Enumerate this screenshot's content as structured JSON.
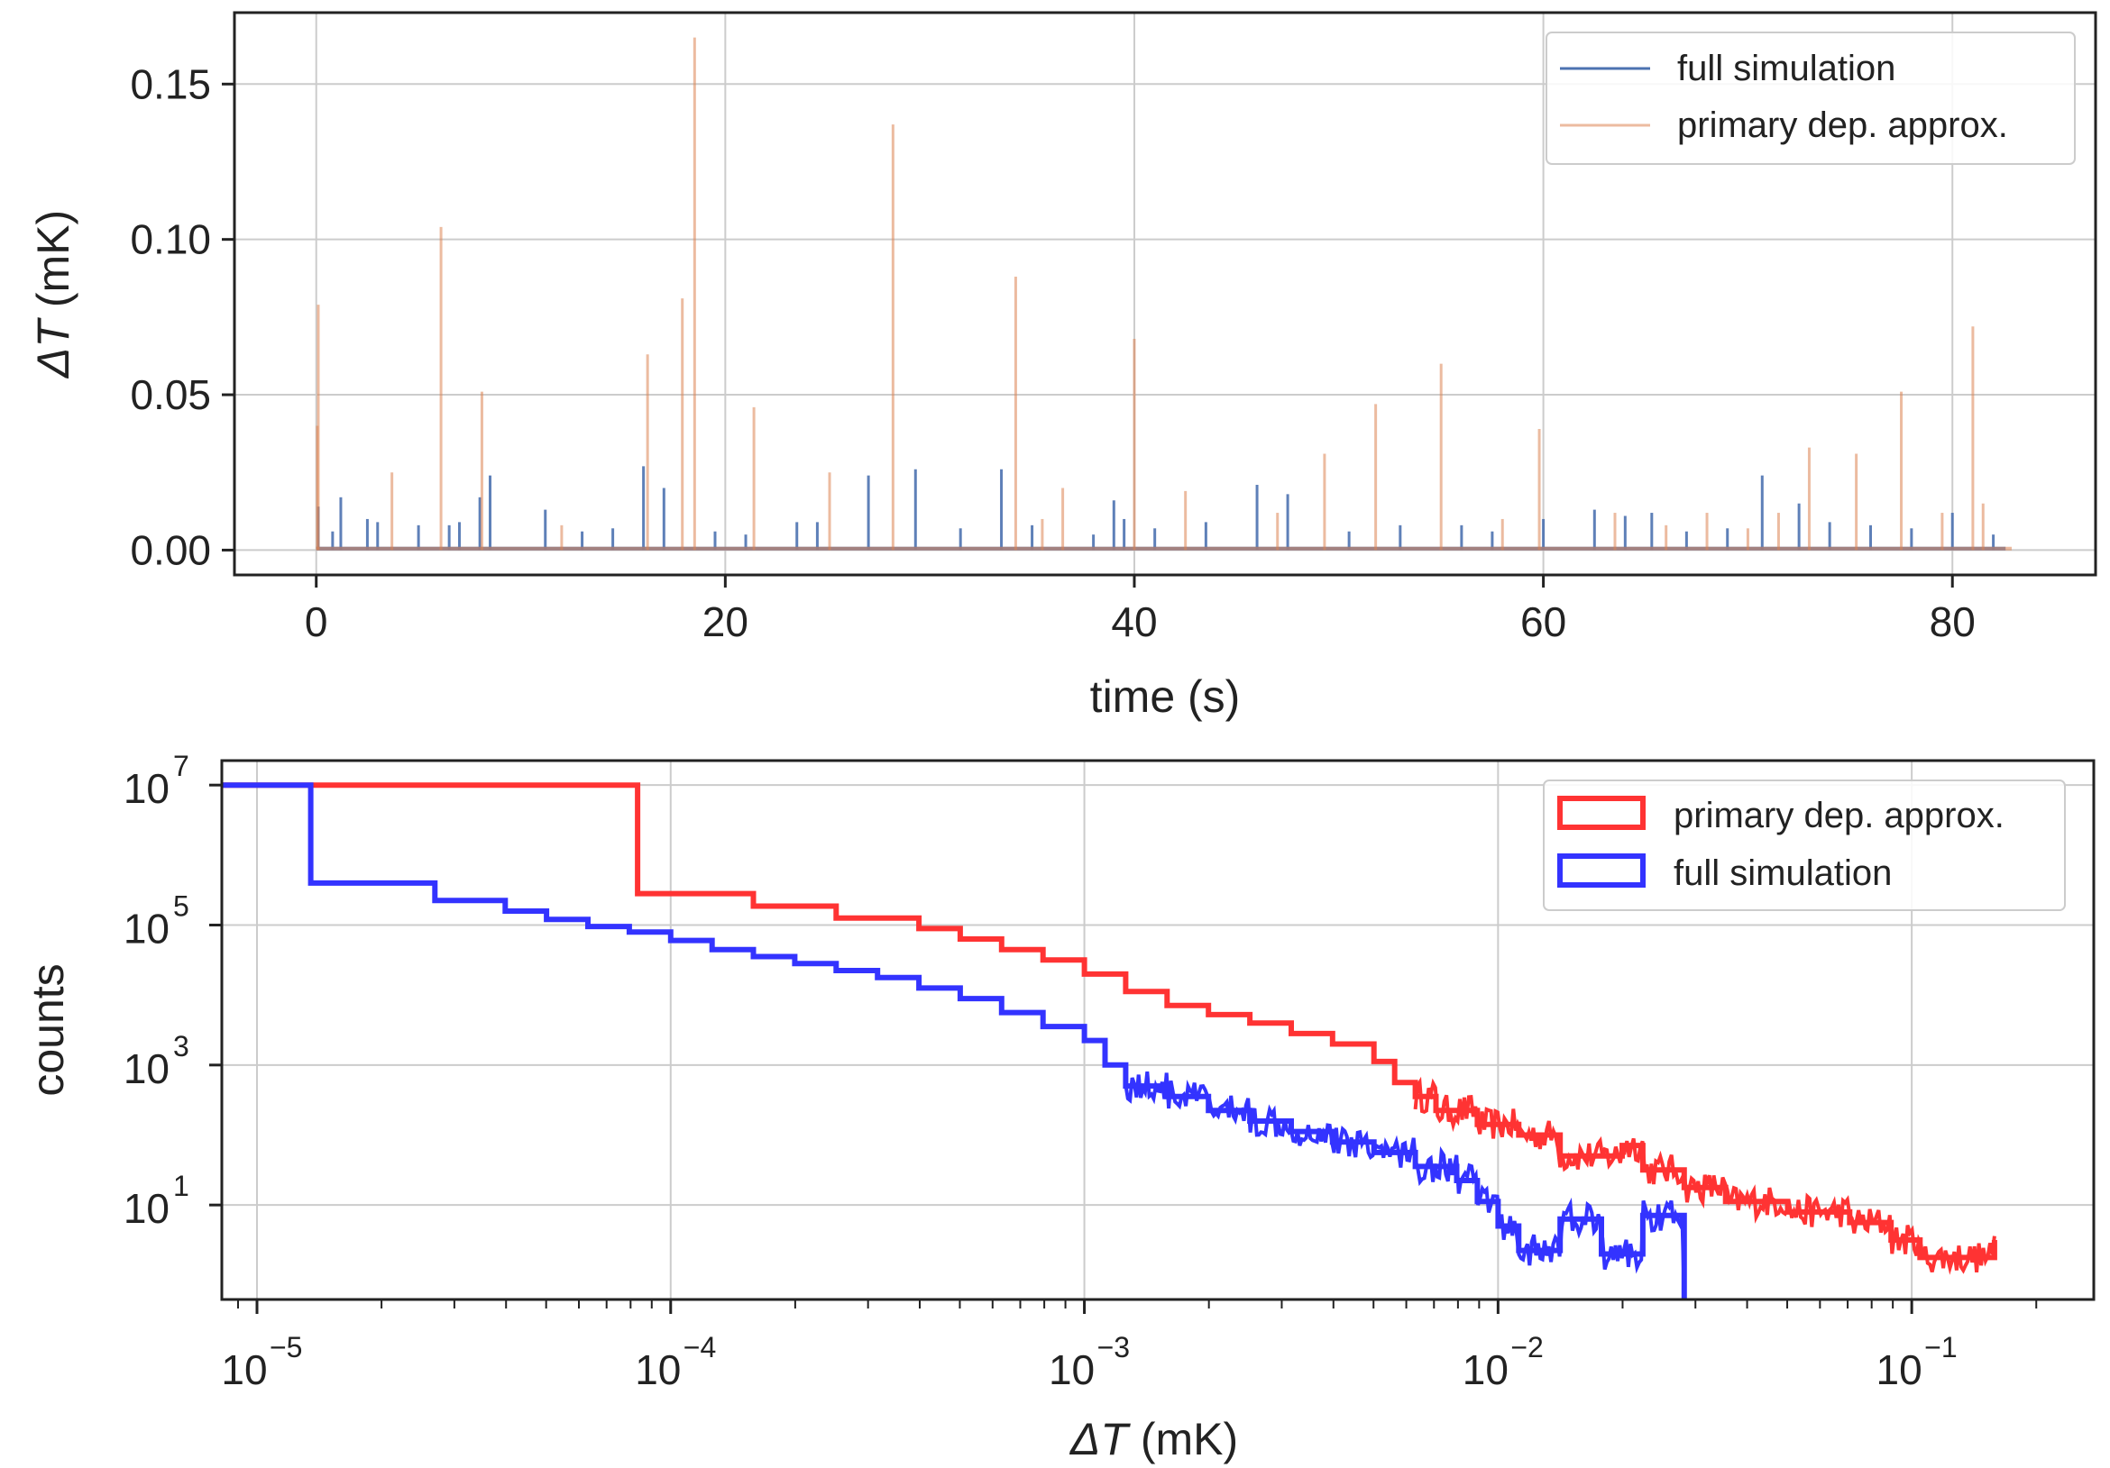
{
  "chart_data": [
    {
      "type": "line",
      "title": "",
      "xlabel": "time (s)",
      "ylabel_symbol": "ΔT",
      "ylabel_unit": "(mK)",
      "xlim": [
        -4,
        87
      ],
      "ylim": [
        -0.008,
        0.173
      ],
      "xticks": [
        0,
        20,
        40,
        60,
        80
      ],
      "xtick_labels": [
        "0",
        "20",
        "40",
        "60",
        "80"
      ],
      "yticks": [
        0.0,
        0.05,
        0.1,
        0.15
      ],
      "ytick_labels": [
        "0.00",
        "0.05",
        "0.10",
        "0.15"
      ],
      "grid": true,
      "legend_position": "upper right",
      "baseline_level": 0.001,
      "series": [
        {
          "name": "full simulation",
          "color": "#4c72b0",
          "x_end": 82.6,
          "spikes": [
            [
              0.1,
              0.014
            ],
            [
              0.8,
              0.006
            ],
            [
              1.2,
              0.017
            ],
            [
              2.5,
              0.01
            ],
            [
              3.0,
              0.009
            ],
            [
              5.0,
              0.008
            ],
            [
              6.5,
              0.008
            ],
            [
              7.0,
              0.009
            ],
            [
              8.0,
              0.017
            ],
            [
              8.5,
              0.024
            ],
            [
              11.2,
              0.013
            ],
            [
              13.0,
              0.006
            ],
            [
              14.5,
              0.007
            ],
            [
              16.0,
              0.027
            ],
            [
              17.0,
              0.02
            ],
            [
              19.5,
              0.006
            ],
            [
              21.0,
              0.005
            ],
            [
              23.5,
              0.009
            ],
            [
              24.5,
              0.009
            ],
            [
              27.0,
              0.024
            ],
            [
              29.3,
              0.026
            ],
            [
              31.5,
              0.007
            ],
            [
              33.5,
              0.026
            ],
            [
              35.0,
              0.008
            ],
            [
              38.0,
              0.005
            ],
            [
              39.0,
              0.016
            ],
            [
              39.5,
              0.01
            ],
            [
              41.0,
              0.007
            ],
            [
              43.5,
              0.009
            ],
            [
              46.0,
              0.021
            ],
            [
              47.5,
              0.018
            ],
            [
              50.5,
              0.006
            ],
            [
              53.0,
              0.008
            ],
            [
              56.0,
              0.008
            ],
            [
              57.5,
              0.006
            ],
            [
              60.0,
              0.01
            ],
            [
              62.5,
              0.013
            ],
            [
              64.0,
              0.011
            ],
            [
              65.3,
              0.012
            ],
            [
              67.0,
              0.006
            ],
            [
              69.0,
              0.007
            ],
            [
              70.7,
              0.024
            ],
            [
              72.5,
              0.015
            ],
            [
              74.0,
              0.009
            ],
            [
              76.0,
              0.008
            ],
            [
              78.0,
              0.007
            ],
            [
              80.0,
              0.012
            ],
            [
              82.0,
              0.005
            ]
          ]
        },
        {
          "name": "primary dep. approx.",
          "color": "#dd8452",
          "x_end": 82.9,
          "spikes": [
            [
              0.05,
              0.04
            ],
            [
              0.1,
              0.079
            ],
            [
              3.7,
              0.025
            ],
            [
              6.1,
              0.104
            ],
            [
              8.1,
              0.051
            ],
            [
              12.0,
              0.008
            ],
            [
              16.2,
              0.063
            ],
            [
              17.9,
              0.081
            ],
            [
              18.5,
              0.165
            ],
            [
              21.4,
              0.046
            ],
            [
              25.1,
              0.025
            ],
            [
              28.2,
              0.137
            ],
            [
              34.2,
              0.088
            ],
            [
              35.5,
              0.01
            ],
            [
              36.5,
              0.02
            ],
            [
              40.0,
              0.068
            ],
            [
              42.5,
              0.019
            ],
            [
              47.0,
              0.012
            ],
            [
              49.3,
              0.031
            ],
            [
              51.8,
              0.047
            ],
            [
              55.0,
              0.06
            ],
            [
              58.0,
              0.01
            ],
            [
              59.8,
              0.039
            ],
            [
              63.5,
              0.012
            ],
            [
              66.0,
              0.008
            ],
            [
              68.0,
              0.012
            ],
            [
              70.0,
              0.007
            ],
            [
              71.5,
              0.012
            ],
            [
              73.0,
              0.033
            ],
            [
              75.3,
              0.031
            ],
            [
              77.5,
              0.051
            ],
            [
              79.5,
              0.012
            ],
            [
              81.0,
              0.072
            ],
            [
              81.5,
              0.015
            ]
          ]
        }
      ]
    },
    {
      "type": "step",
      "title": "",
      "xlabel_symbol": "ΔT",
      "xlabel_unit": "(mK)",
      "ylabel": "counts",
      "xscale": "log",
      "yscale": "log",
      "xlim_log10": [
        -5.085,
        -0.56
      ],
      "ylim_log10": [
        -0.35,
        7.35
      ],
      "xtick_exponents": [
        "−5",
        "−4",
        "−3",
        "−2",
        "−1"
      ],
      "xtick_values": [
        -5,
        -4,
        -3,
        -2,
        -1
      ],
      "ytick_exponents": [
        "1",
        "3",
        "5",
        "7"
      ],
      "ytick_values": [
        1,
        3,
        5,
        7
      ],
      "tick_base": "10",
      "grid": true,
      "legend_position": "upper right",
      "series": [
        {
          "name": "primary dep. approx.",
          "color": "#ff3333",
          "points": [
            [
              -5.085,
              7.0
            ],
            [
              -4.08,
              7.0
            ],
            [
              -4.08,
              5.45
            ],
            [
              -3.8,
              5.45
            ],
            [
              -3.8,
              5.27
            ],
            [
              -3.6,
              5.27
            ],
            [
              -3.6,
              5.1
            ],
            [
              -3.4,
              5.1
            ],
            [
              -3.4,
              4.95
            ],
            [
              -3.3,
              4.95
            ],
            [
              -3.3,
              4.8
            ],
            [
              -3.2,
              4.8
            ],
            [
              -3.2,
              4.65
            ],
            [
              -3.1,
              4.65
            ],
            [
              -3.1,
              4.5
            ],
            [
              -3.0,
              4.5
            ],
            [
              -3.0,
              4.3
            ],
            [
              -2.9,
              4.3
            ],
            [
              -2.9,
              4.05
            ],
            [
              -2.8,
              4.05
            ],
            [
              -2.8,
              3.85
            ],
            [
              -2.7,
              3.85
            ],
            [
              -2.7,
              3.72
            ],
            [
              -2.6,
              3.72
            ],
            [
              -2.6,
              3.6
            ],
            [
              -2.5,
              3.6
            ],
            [
              -2.5,
              3.45
            ],
            [
              -2.4,
              3.45
            ],
            [
              -2.4,
              3.3
            ],
            [
              -2.3,
              3.3
            ],
            [
              -2.3,
              3.05
            ],
            [
              -2.25,
              3.05
            ],
            [
              -2.25,
              2.75
            ],
            [
              -2.2,
              2.75
            ],
            [
              -2.2,
              2.55
            ],
            [
              -2.15,
              2.55
            ],
            [
              -2.15,
              2.35
            ],
            [
              -2.05,
              2.35
            ],
            [
              -2.05,
              2.15
            ],
            [
              -1.95,
              2.15
            ],
            [
              -1.95,
              2.0
            ],
            [
              -1.85,
              2.0
            ],
            [
              -1.85,
              1.7
            ],
            [
              -1.7,
              1.7
            ],
            [
              -1.7,
              1.85
            ],
            [
              -1.65,
              1.85
            ],
            [
              -1.65,
              1.5
            ],
            [
              -1.55,
              1.5
            ],
            [
              -1.55,
              1.25
            ],
            [
              -1.45,
              1.25
            ],
            [
              -1.45,
              1.05
            ],
            [
              -1.3,
              1.05
            ],
            [
              -1.3,
              0.9
            ],
            [
              -1.15,
              0.9
            ],
            [
              -1.15,
              0.75
            ],
            [
              -1.05,
              0.75
            ],
            [
              -1.05,
              0.5
            ],
            [
              -0.98,
              0.5
            ],
            [
              -0.98,
              0.25
            ],
            [
              -0.8,
              0.25
            ],
            [
              -0.8,
              0.5
            ]
          ]
        },
        {
          "name": "full simulation",
          "color": "#3333ff",
          "points": [
            [
              -5.085,
              7.0
            ],
            [
              -4.87,
              7.0
            ],
            [
              -4.87,
              5.6
            ],
            [
              -4.57,
              5.6
            ],
            [
              -4.57,
              5.35
            ],
            [
              -4.4,
              5.35
            ],
            [
              -4.4,
              5.2
            ],
            [
              -4.3,
              5.2
            ],
            [
              -4.3,
              5.08
            ],
            [
              -4.2,
              5.08
            ],
            [
              -4.2,
              4.98
            ],
            [
              -4.1,
              4.98
            ],
            [
              -4.1,
              4.9
            ],
            [
              -4.0,
              4.9
            ],
            [
              -4.0,
              4.78
            ],
            [
              -3.9,
              4.78
            ],
            [
              -3.9,
              4.65
            ],
            [
              -3.8,
              4.65
            ],
            [
              -3.8,
              4.55
            ],
            [
              -3.7,
              4.55
            ],
            [
              -3.7,
              4.45
            ],
            [
              -3.6,
              4.45
            ],
            [
              -3.6,
              4.35
            ],
            [
              -3.5,
              4.35
            ],
            [
              -3.5,
              4.25
            ],
            [
              -3.4,
              4.25
            ],
            [
              -3.4,
              4.1
            ],
            [
              -3.3,
              4.1
            ],
            [
              -3.3,
              3.95
            ],
            [
              -3.2,
              3.95
            ],
            [
              -3.2,
              3.75
            ],
            [
              -3.1,
              3.75
            ],
            [
              -3.1,
              3.55
            ],
            [
              -3.0,
              3.55
            ],
            [
              -3.0,
              3.35
            ],
            [
              -2.95,
              3.35
            ],
            [
              -2.95,
              3.0
            ],
            [
              -2.9,
              3.0
            ],
            [
              -2.9,
              2.7
            ],
            [
              -2.8,
              2.7
            ],
            [
              -2.8,
              2.55
            ],
            [
              -2.7,
              2.55
            ],
            [
              -2.7,
              2.35
            ],
            [
              -2.6,
              2.35
            ],
            [
              -2.6,
              2.2
            ],
            [
              -2.5,
              2.2
            ],
            [
              -2.5,
              2.05
            ],
            [
              -2.4,
              2.05
            ],
            [
              -2.4,
              1.9
            ],
            [
              -2.3,
              1.9
            ],
            [
              -2.3,
              1.75
            ],
            [
              -2.2,
              1.75
            ],
            [
              -2.2,
              1.55
            ],
            [
              -2.1,
              1.55
            ],
            [
              -2.1,
              1.35
            ],
            [
              -2.05,
              1.35
            ],
            [
              -2.05,
              1.05
            ],
            [
              -2.0,
              1.05
            ],
            [
              -2.0,
              0.7
            ],
            [
              -1.95,
              0.7
            ],
            [
              -1.95,
              0.35
            ],
            [
              -1.85,
              0.35
            ],
            [
              -1.85,
              0.8
            ],
            [
              -1.75,
              0.8
            ],
            [
              -1.75,
              0.3
            ],
            [
              -1.65,
              0.3
            ],
            [
              -1.65,
              0.85
            ],
            [
              -1.55,
              0.85
            ],
            [
              -1.55,
              -0.35
            ]
          ]
        }
      ]
    }
  ]
}
